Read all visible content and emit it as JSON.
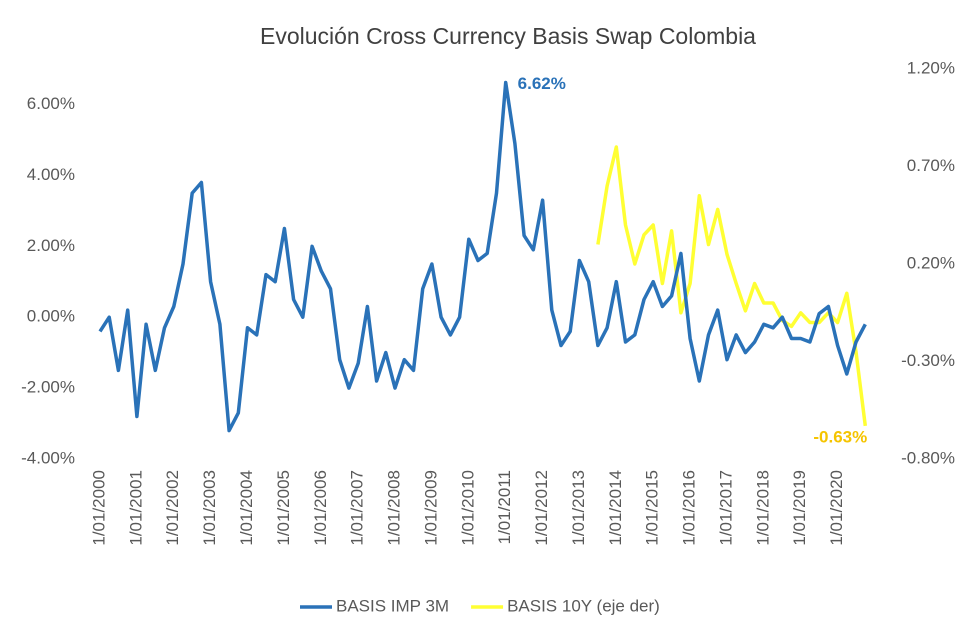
{
  "chart_data": {
    "type": "line",
    "title": "Evolución Cross Currency Basis Swap Colombia",
    "categories": [
      "1/01/2000",
      null,
      null,
      null,
      "1/01/2001",
      null,
      null,
      null,
      "1/01/2002",
      null,
      null,
      null,
      "1/01/2003",
      null,
      null,
      null,
      "1/01/2004",
      null,
      null,
      null,
      "1/01/2005",
      null,
      null,
      null,
      "1/01/2006",
      null,
      null,
      null,
      "1/01/2007",
      null,
      null,
      null,
      "1/01/2008",
      null,
      null,
      null,
      "1/01/2009",
      null,
      null,
      null,
      "1/01/2010",
      null,
      null,
      null,
      "1/01/2011",
      null,
      null,
      null,
      "1/01/2012",
      null,
      null,
      null,
      "1/01/2013",
      null,
      null,
      null,
      "1/01/2014",
      null,
      null,
      null,
      "1/01/2015",
      null,
      null,
      null,
      "1/01/2016",
      null,
      null,
      null,
      "1/01/2017",
      null,
      null,
      null,
      "1/01/2018",
      null,
      null,
      null,
      "1/01/2019",
      null,
      null,
      null,
      "1/01/2020",
      null,
      null,
      null
    ],
    "series": [
      {
        "name": "BASIS IMP 3M",
        "color": "#2a72b8",
        "axis": "y",
        "values": [
          -0.4,
          0.0,
          -1.5,
          0.2,
          -2.8,
          -0.2,
          -1.5,
          -0.3,
          0.3,
          1.5,
          3.5,
          3.8,
          1.0,
          -0.2,
          -3.2,
          -2.7,
          -0.3,
          -0.5,
          1.2,
          1.0,
          2.5,
          0.5,
          0.0,
          2.0,
          1.3,
          0.8,
          -1.2,
          -2.0,
          -1.3,
          0.3,
          -1.8,
          -1.0,
          -2.0,
          -1.2,
          -1.5,
          0.8,
          1.5,
          0.0,
          -0.5,
          0.0,
          2.2,
          1.6,
          1.8,
          3.5,
          6.62,
          4.9,
          2.3,
          1.9,
          3.3,
          0.2,
          -0.8,
          -0.4,
          1.6,
          1.0,
          -0.8,
          -0.3,
          1.0,
          -0.7,
          -0.5,
          0.5,
          1.0,
          0.3,
          0.6,
          1.8,
          -0.6,
          -1.8,
          -0.5,
          0.2,
          -1.2,
          -0.5,
          -1.0,
          -0.7,
          -0.2,
          -0.3,
          0.0,
          -0.6,
          -0.6,
          -0.7,
          0.1,
          0.3,
          -0.8,
          -1.6,
          -0.7,
          -0.2
        ]
      },
      {
        "name": "BASIS 10Y (eje der)",
        "color": "#ffff33",
        "axis": "y2",
        "values": [
          null,
          null,
          null,
          null,
          null,
          null,
          null,
          null,
          null,
          null,
          null,
          null,
          null,
          null,
          null,
          null,
          null,
          null,
          null,
          null,
          null,
          null,
          null,
          null,
          null,
          null,
          null,
          null,
          null,
          null,
          null,
          null,
          null,
          null,
          null,
          null,
          null,
          null,
          null,
          null,
          null,
          null,
          null,
          null,
          null,
          null,
          null,
          null,
          null,
          null,
          null,
          null,
          null,
          null,
          0.3,
          0.6,
          0.8,
          0.4,
          0.2,
          0.35,
          0.4,
          0.1,
          0.37,
          -0.05,
          0.1,
          0.55,
          0.3,
          0.48,
          0.25,
          0.1,
          -0.04,
          0.1,
          0.0,
          0.0,
          -0.09,
          -0.12,
          -0.05,
          -0.1,
          -0.1,
          -0.05,
          -0.1,
          0.05,
          -0.25,
          -0.63
        ]
      }
    ],
    "annotations": [
      {
        "text": "6.62%",
        "color": "#2a72b8"
      },
      {
        "text": "-0.63%",
        "color": "#f5c400"
      }
    ],
    "ylim": [
      -4,
      7
    ],
    "yticks": [
      {
        "value": -4,
        "label": "-4.00%"
      },
      {
        "value": -2,
        "label": "-2.00%"
      },
      {
        "value": 0,
        "label": "0.00%"
      },
      {
        "value": 2,
        "label": "2.00%"
      },
      {
        "value": 4,
        "label": "4.00%"
      },
      {
        "value": 6,
        "label": "6.00%"
      }
    ],
    "y2lim": [
      -0.8,
      1.2
    ],
    "y2ticks": [
      {
        "value": -0.8,
        "label": "-0.80%"
      },
      {
        "value": -0.3,
        "label": "-0.30%"
      },
      {
        "value": 0.2,
        "label": "0.20%"
      },
      {
        "value": 0.7,
        "label": "0.70%"
      },
      {
        "value": 1.2,
        "label": "1.20%"
      }
    ],
    "grid": false,
    "legend": "bottom"
  }
}
